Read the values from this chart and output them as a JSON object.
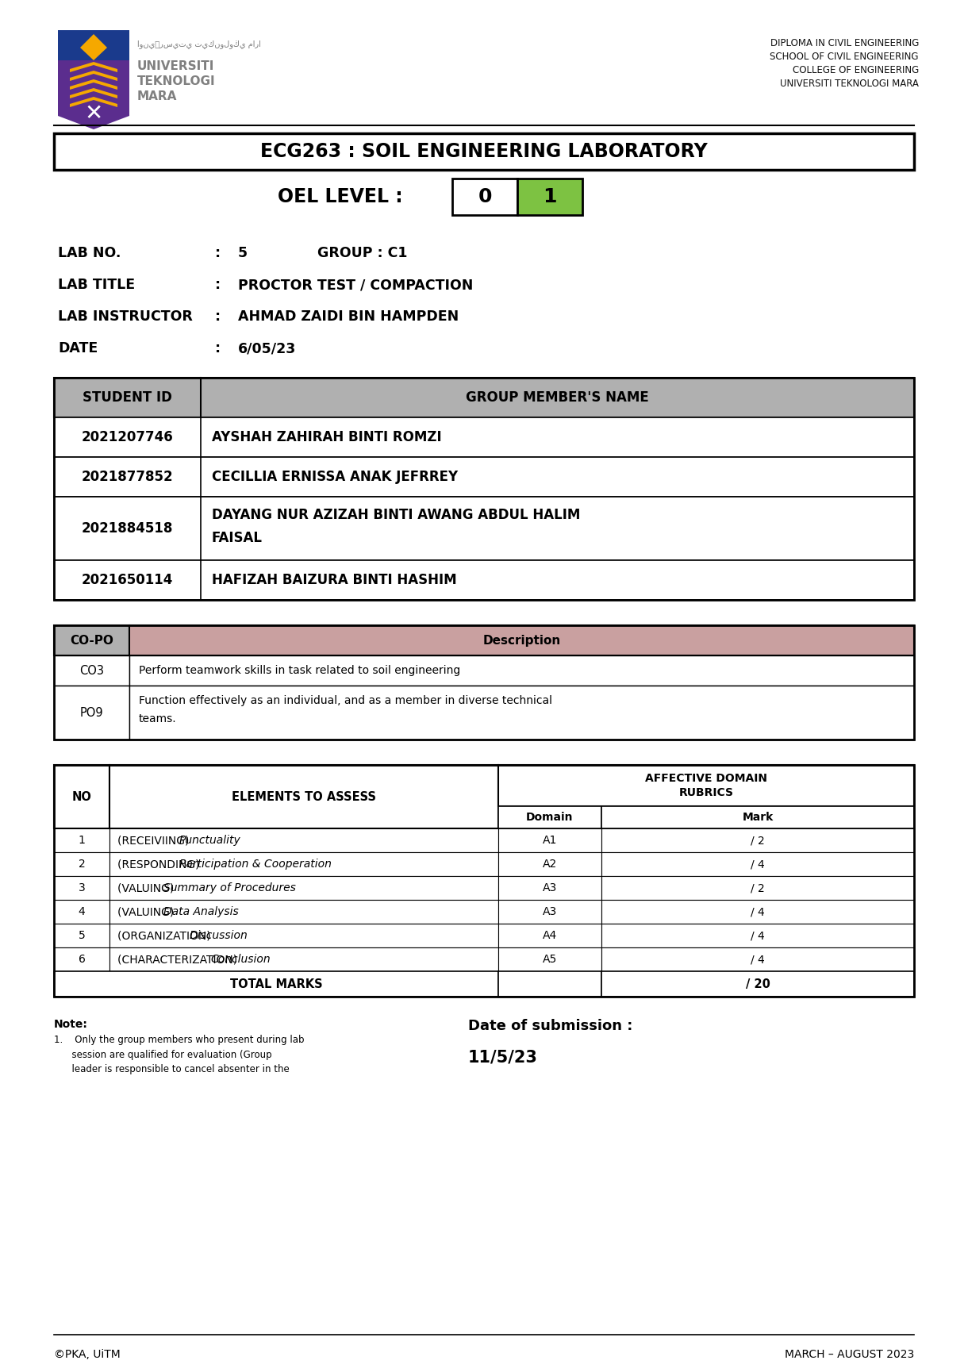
{
  "page_bg": "#ffffff",
  "header_text_lines": [
    "DIPLOMA IN CIVIL ENGINEERING",
    "SCHOOL OF CIVIL ENGINEERING",
    "COLLEGE OF ENGINEERING",
    "UNIVERSITI TEKNOLOGI MARA"
  ],
  "main_title": "ECG263 : SOIL ENGINEERING LABORATORY",
  "oel_label": "OEL LEVEL :",
  "oel_value_0": "0",
  "oel_value_1": "1",
  "oel_color_0": "#ffffff",
  "oel_color_1": "#7dc242",
  "lab_info": [
    [
      "LAB NO.",
      ":   5",
      "GROUP : C1"
    ],
    [
      "LAB TITLE",
      ":   PROCTOR TEST / COMPACTION",
      ""
    ],
    [
      "LAB INSTRUCTOR",
      ":   AHMAD ZAIDI BIN HAMPDEN",
      ""
    ],
    [
      "DATE",
      ":   6/05/23",
      ""
    ]
  ],
  "student_table_header": [
    "STUDENT ID",
    "GROUP MEMBER'S NAME"
  ],
  "student_table_header_bg": "#b0b0b0",
  "student_rows": [
    [
      "2021207746",
      "AYSHAH ZAHIRAH BINTI ROMZI",
      false
    ],
    [
      "2021877852",
      "CECILLIA ERNISSA ANAK JEFRREY",
      false
    ],
    [
      "2021884518",
      "DAYANG NUR AZIZAH BINTI AWANG ABDUL HALIM\nFAISAL",
      true
    ],
    [
      "2021650114",
      "HAFIZAH BAIZURA BINTI HASHIM",
      false
    ]
  ],
  "copo_header_left_bg": "#b0b0b0",
  "copo_header_right_bg": "#c9a0a0",
  "copo_rows": [
    [
      "CO3",
      "Perform teamwork skills in task related to soil engineering",
      false
    ],
    [
      "PO9",
      "Function effectively as an individual, and as a member in diverse technical\nteams.",
      true
    ]
  ],
  "assess_rows": [
    [
      "1",
      "(RECEIVIING)",
      "Punctuality",
      "A1",
      "/ 2"
    ],
    [
      "2",
      "(RESPONDING)",
      "Participation & Cooperation",
      "A2",
      "/ 4"
    ],
    [
      "3",
      "(VALUING)",
      "Summary of Procedures",
      "A3",
      "/ 2"
    ],
    [
      "4",
      "(VALUING)",
      "Data Analysis",
      "A3",
      "/ 4"
    ],
    [
      "5",
      "(ORGANIZATION)",
      "Discussion",
      "A4",
      "/ 4"
    ],
    [
      "6",
      "(CHARACTERIZATION)",
      "Conclusion",
      "A5",
      "/ 4"
    ]
  ],
  "assess_total_mark": "/ 20",
  "note_line1": "Note:",
  "note_body": "1.    Only the group members who present during lab\n      session are qualified for evaluation (Group\n      leader is responsible to cancel absenter in the",
  "submission_label": "Date of submission :",
  "submission_date": "11/5/23",
  "footer_left": "©PKA, UiTM",
  "footer_right": "MARCH – AUGUST 2023"
}
